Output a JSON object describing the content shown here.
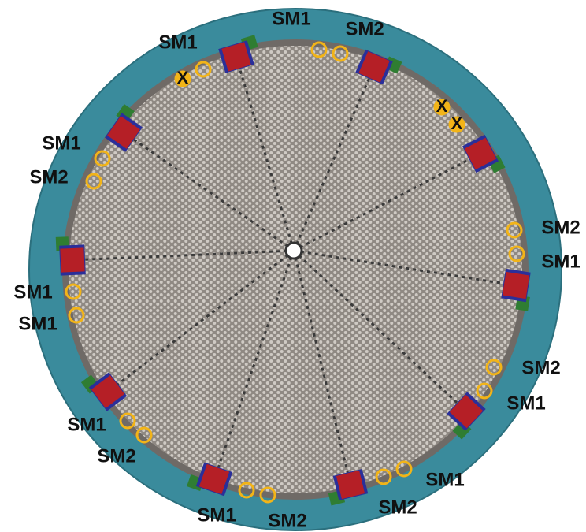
{
  "labels": [
    {
      "text": "SM1"
    },
    {
      "text": "SM1"
    },
    {
      "text": "SM2"
    },
    {
      "text": "SM1"
    },
    {
      "text": "SM2"
    },
    {
      "text": "SM2"
    },
    {
      "text": "SM1"
    },
    {
      "text": "SM1"
    },
    {
      "text": "SM1"
    },
    {
      "text": "SM2"
    },
    {
      "text": "SM1"
    },
    {
      "text": "SM1"
    },
    {
      "text": "SM2"
    },
    {
      "text": "SM1"
    },
    {
      "text": "SM2"
    },
    {
      "text": "SM1"
    },
    {
      "text": "SM2"
    }
  ],
  "markers": [
    {
      "text": "X"
    },
    {
      "text": "X"
    },
    {
      "text": "X"
    }
  ]
}
